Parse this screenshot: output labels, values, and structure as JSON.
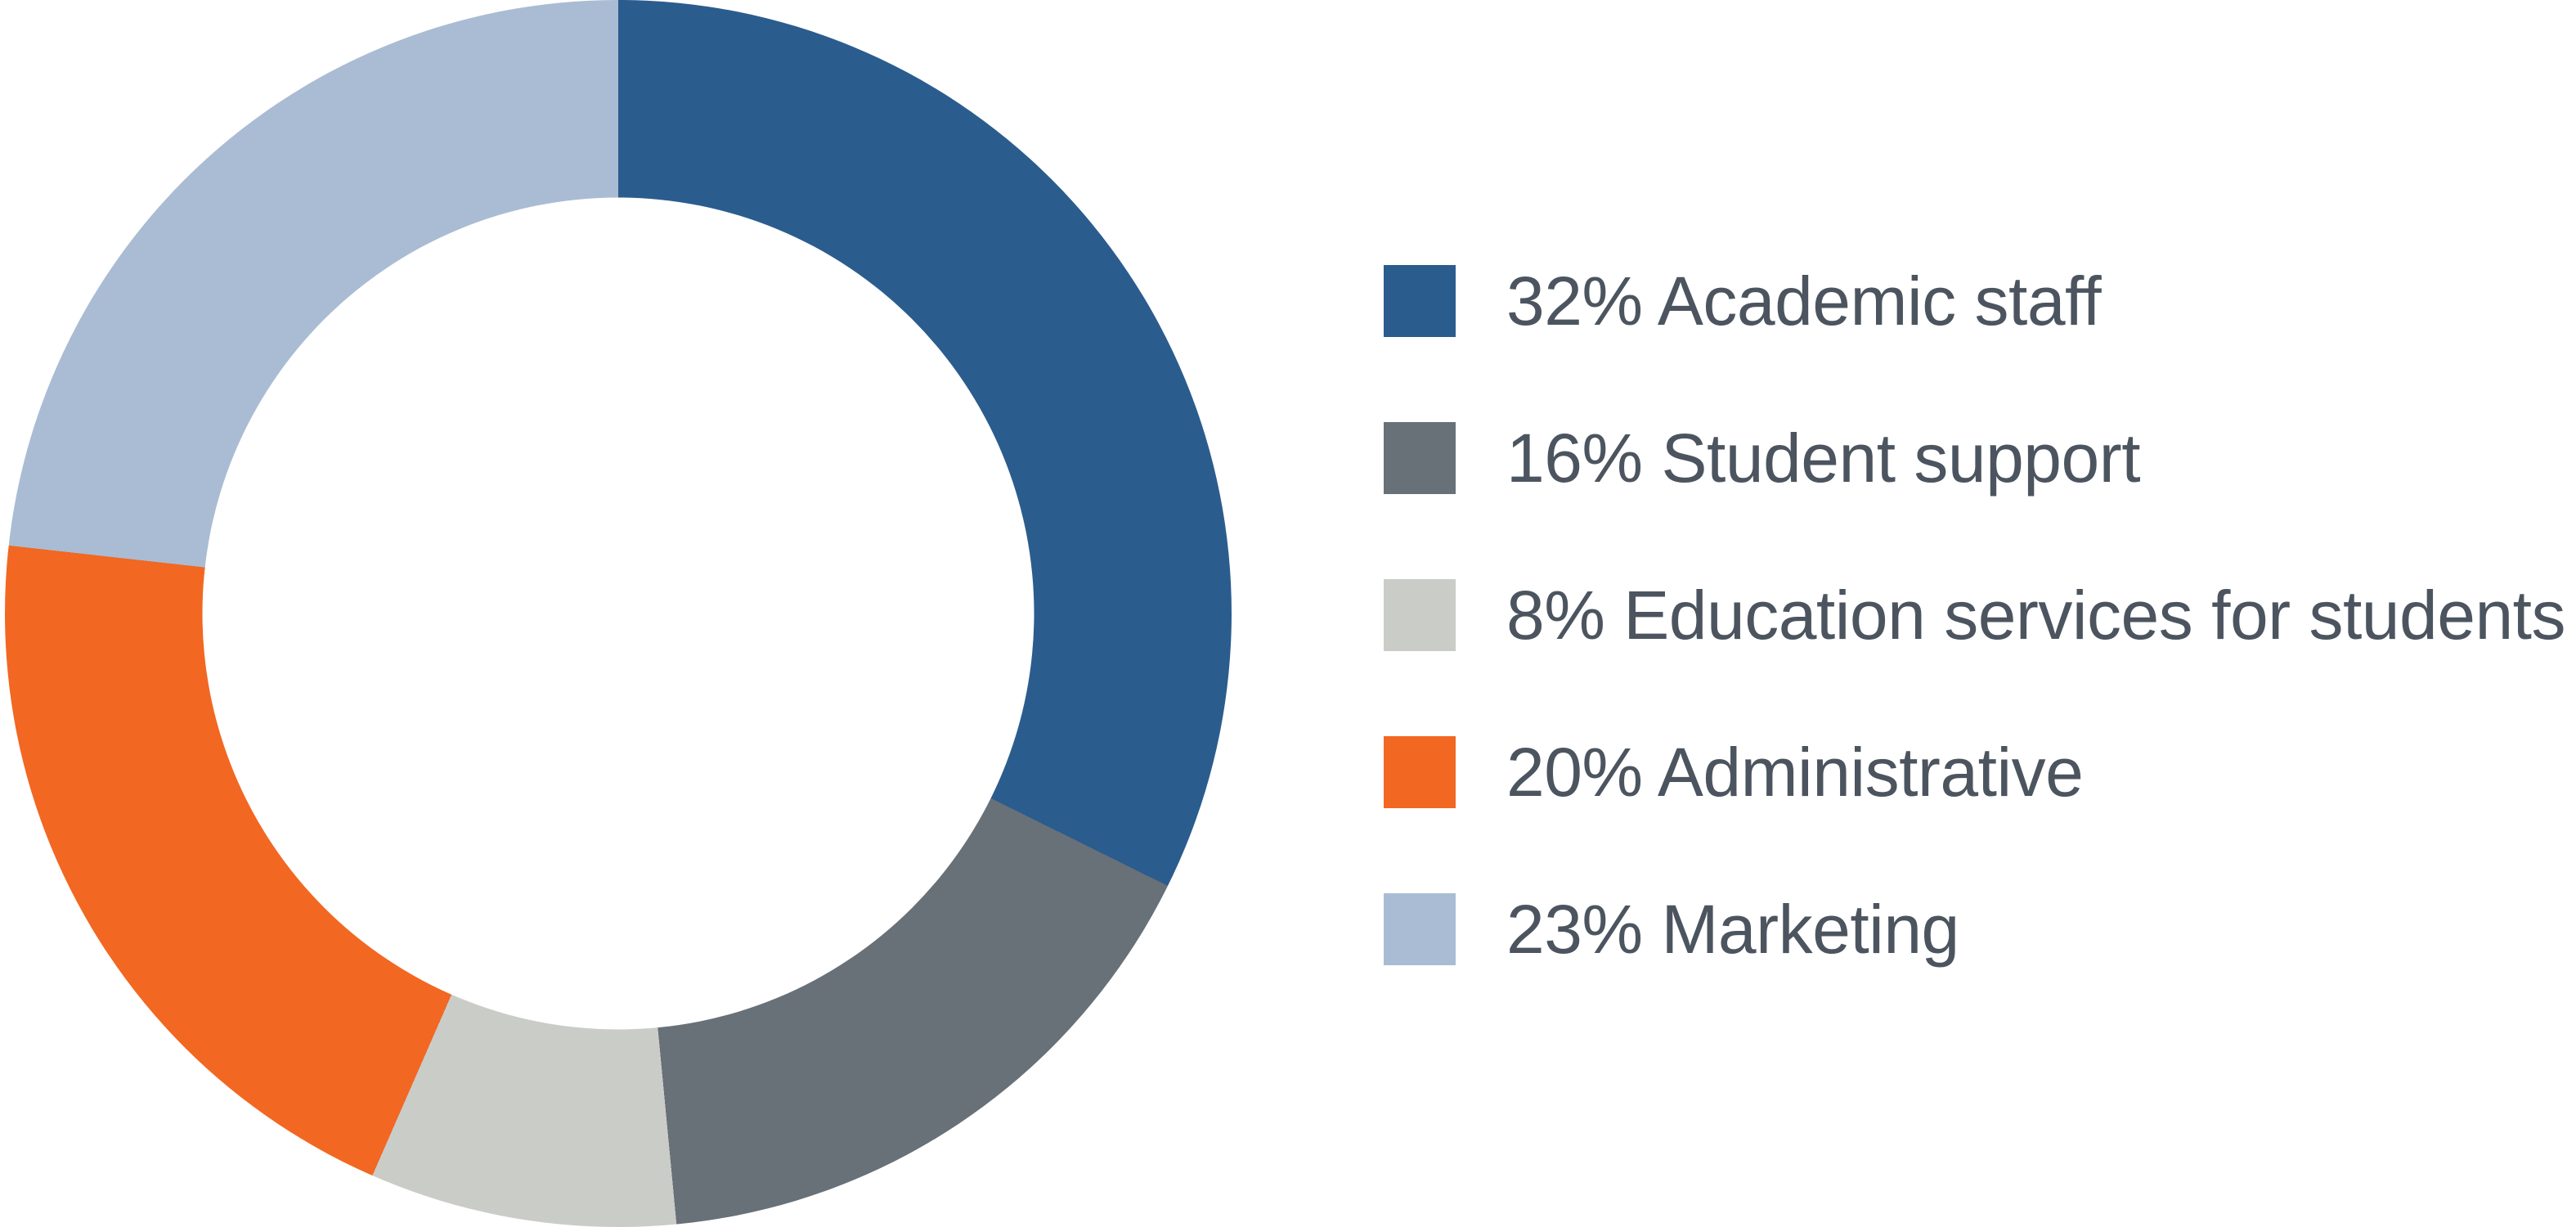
{
  "chart_data": {
    "type": "pie",
    "subtype": "donut",
    "title": "",
    "direction": "clockwise",
    "start_angle_deg": 0,
    "inner_radius_ratio": 0.678,
    "legend_position": "right",
    "background_color": "#FFFFFF",
    "text_color": "#4C555F",
    "segments": [
      {
        "label": "Academic staff",
        "value": 32,
        "legend_text": "32% Academic staff",
        "color": "#2B5C8E"
      },
      {
        "label": "Student support",
        "value": 16,
        "legend_text": "16% Student support",
        "color": "#687078"
      },
      {
        "label": "Education services for students",
        "value": 8,
        "legend_text": "8% Education services for students",
        "color": "#CACCC8"
      },
      {
        "label": "Administrative",
        "value": 20,
        "legend_text": "20% Administrative",
        "color": "#F26722"
      },
      {
        "label": "Marketing",
        "value": 23,
        "legend_text": "23% Marketing",
        "color": "#A9BCD3"
      }
    ]
  }
}
